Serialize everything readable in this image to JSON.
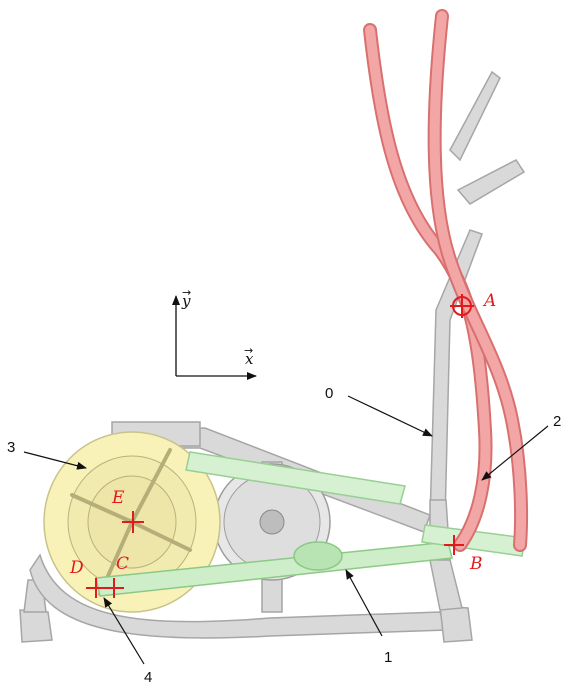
{
  "axes": {
    "x_label": "x",
    "y_label": "y"
  },
  "points": {
    "A": "A",
    "B": "B",
    "C": "C",
    "D": "D",
    "E": "E"
  },
  "parts": {
    "p0": "0",
    "p1": "1",
    "p2": "2",
    "p3": "3",
    "p4": "4"
  },
  "colors": {
    "handle_red": "#f2a6a6",
    "handle_red_edge": "#d97070",
    "rod_green": "#cdeec8",
    "rod_green_edge": "#8cc986",
    "wheel_yellow": "#f8f2b8",
    "frame_grey": "#d6d6d6",
    "frame_edge": "#a9a9a9",
    "marker_red": "#e11b1b"
  }
}
